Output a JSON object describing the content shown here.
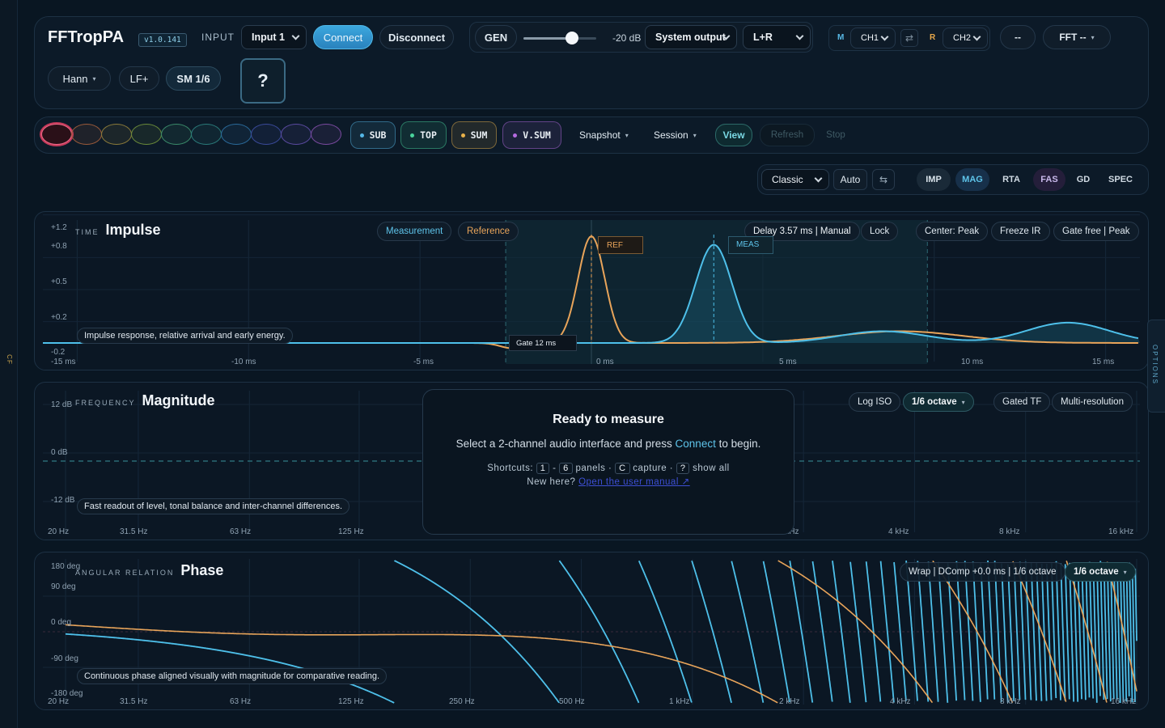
{
  "app": {
    "name": "FFTropPA",
    "version": "v1.0.141"
  },
  "topbar": {
    "input_label": "INPUT",
    "input_value": "Input 1",
    "connect": "Connect",
    "disconnect": "Disconnect",
    "gen": "GEN",
    "gen_level": "-20 dB",
    "gen_level_fraction": 0.65,
    "output_value": "System output",
    "output_channel": "L+R",
    "m_label": "M",
    "ch1": "CH1",
    "swap_icon": "swap-icon",
    "r_label": "R",
    "ch2": "CH2",
    "dash": "--",
    "fft": "FFT --",
    "window": "Hann",
    "lf": "LF+",
    "smoothing": "SM 1/6",
    "help": "?"
  },
  "toolbar2": {
    "memory_slots": 10,
    "traces": [
      {
        "label": "SUB",
        "color": "#55b7e6"
      },
      {
        "label": "TOP",
        "color": "#49d39b"
      },
      {
        "label": "SUM",
        "color": "#e8b14a"
      },
      {
        "label": "V.SUM",
        "color": "#b56be0"
      }
    ],
    "snapshot": "Snapshot",
    "session": "Session",
    "view": "View",
    "refresh": "Refresh",
    "stop": "Stop"
  },
  "viewbar": {
    "layout": "Classic",
    "auto": "Auto",
    "tabs": [
      "IMP",
      "MAG",
      "RTA",
      "FAS",
      "GD",
      "SPEC"
    ]
  },
  "impulse": {
    "kicker": "TIME",
    "title": "Impulse",
    "legend_meas": "Measurement",
    "legend_ref": "Reference",
    "delay": "Delay 3.57 ms | Manual",
    "lock": "Lock",
    "center": "Center: Peak",
    "freeze": "Freeze IR",
    "gate": "Gate free | Peak",
    "ref_tag": "REF",
    "meas_tag": "MEAS",
    "gate_label": "Gate 12 ms",
    "y_ticks": [
      "+1.2",
      "+0.8",
      "+0.5",
      "+0.2",
      "-0.2"
    ],
    "x_ticks": [
      "-15 ms",
      "-10 ms",
      "-5 ms",
      "0 ms",
      "5 ms",
      "10 ms",
      "15 ms"
    ],
    "desc": "Impulse response, relative arrival and early energy."
  },
  "magnitude": {
    "kicker": "FREQUENCY",
    "title": "Magnitude",
    "y_ticks": [
      "12 dB",
      "0 dB",
      "-12 dB"
    ],
    "x_ticks_left": [
      "20 Hz",
      "31.5 Hz",
      "63 Hz",
      "125 Hz"
    ],
    "x_ticks_right": [
      "2 kHz",
      "4 kHz",
      "8 kHz",
      "16 kHz"
    ],
    "log_iso": "Log ISO",
    "octave": "1/6 octave",
    "gated_tf": "Gated TF",
    "multi_res": "Multi-resolution",
    "desc": "Fast readout of level, tonal balance and inter-channel differences.",
    "ready_title": "Ready to measure",
    "ready_body_1": "Select a 2-channel audio interface and press",
    "ready_body_connect": "Connect",
    "ready_body_2": "to begin.",
    "shortcuts_label": "Shortcuts:",
    "key_1": "1",
    "key_dash": "-",
    "key_6": "6",
    "panels": "panels ·",
    "key_c": "C",
    "capture": "capture ·",
    "key_q": "?",
    "show_all": "show all",
    "new_here": "New here?",
    "manual_link": "Open the user manual ↗"
  },
  "phase": {
    "kicker": "ANGULAR RELATION",
    "title": "Phase",
    "y_ticks": [
      "180 deg",
      "90 deg",
      "0 deg",
      "-90 deg",
      "-180 deg"
    ],
    "x_ticks": [
      "20 Hz",
      "31.5 Hz",
      "63 Hz",
      "125 Hz",
      "250 Hz",
      "500 Hz",
      "1 kHz",
      "2 kHz",
      "4 kHz",
      "8 kHz",
      "16 kHz"
    ],
    "wrap": "Wrap | DComp +0.0 ms | 1/6 octave",
    "octave": "1/6 octave",
    "desc": "Continuous phase aligned visually with magnitude for comparative reading."
  },
  "side": {
    "options": "OPTIONS",
    "left_tag": "CF"
  }
}
